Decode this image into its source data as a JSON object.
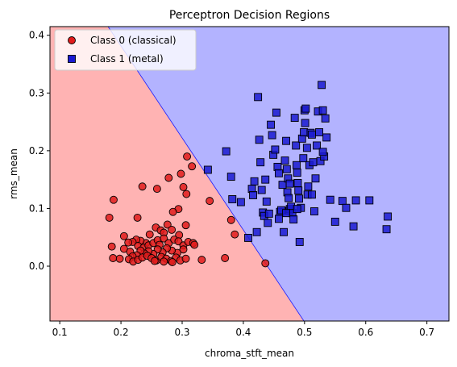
{
  "chart_data": {
    "type": "scatter",
    "title": "Perceptron Decision Regions",
    "xlabel": "chroma_stft_mean",
    "ylabel": "rms_mean",
    "xlim": [
      0.084,
      0.736
    ],
    "ylim": [
      -0.095,
      0.415
    ],
    "xticks": [
      "0.1",
      "0.2",
      "0.3",
      "0.4",
      "0.5",
      "0.6",
      "0.7"
    ],
    "xtick_values": [
      0.1,
      0.2,
      0.3,
      0.4,
      0.5,
      0.6,
      0.7
    ],
    "yticks": [
      "0.0",
      "0.1",
      "0.2",
      "0.3",
      "0.4"
    ],
    "ytick_values": [
      0.0,
      0.1,
      0.2,
      0.3,
      0.4
    ],
    "grid": false,
    "legend_position": "top-left",
    "decision_boundary": {
      "points": [
        [
          0.179,
          0.415
        ],
        [
          0.499,
          -0.095
        ]
      ],
      "class0_region_color": "#ffb3b3",
      "class1_region_color": "#b3b3ff",
      "line_color": "#1a1aff"
    },
    "series": [
      {
        "name": "Class 0 (classical)",
        "marker": "circle",
        "color": "#e11b1b",
        "points": [
          [
            0.181,
            0.084
          ],
          [
            0.188,
            0.115
          ],
          [
            0.235,
            0.138
          ],
          [
            0.259,
            0.134
          ],
          [
            0.227,
            0.084
          ],
          [
            0.308,
            0.19
          ],
          [
            0.316,
            0.173
          ],
          [
            0.298,
            0.16
          ],
          [
            0.278,
            0.153
          ],
          [
            0.302,
            0.137
          ],
          [
            0.307,
            0.125
          ],
          [
            0.345,
            0.113
          ],
          [
            0.294,
            0.099
          ],
          [
            0.285,
            0.094
          ],
          [
            0.257,
            0.067
          ],
          [
            0.265,
            0.062
          ],
          [
            0.276,
            0.072
          ],
          [
            0.283,
            0.063
          ],
          [
            0.306,
            0.071
          ],
          [
            0.295,
            0.054
          ],
          [
            0.27,
            0.058
          ],
          [
            0.247,
            0.055
          ],
          [
            0.241,
            0.04
          ],
          [
            0.232,
            0.044
          ],
          [
            0.225,
            0.046
          ],
          [
            0.219,
            0.042
          ],
          [
            0.212,
            0.041
          ],
          [
            0.205,
            0.052
          ],
          [
            0.185,
            0.034
          ],
          [
            0.205,
            0.03
          ],
          [
            0.215,
            0.025
          ],
          [
            0.228,
            0.035
          ],
          [
            0.237,
            0.032
          ],
          [
            0.245,
            0.036
          ],
          [
            0.253,
            0.04
          ],
          [
            0.26,
            0.045
          ],
          [
            0.263,
            0.037
          ],
          [
            0.27,
            0.048
          ],
          [
            0.278,
            0.04
          ],
          [
            0.287,
            0.046
          ],
          [
            0.294,
            0.043
          ],
          [
            0.302,
            0.036
          ],
          [
            0.31,
            0.042
          ],
          [
            0.318,
            0.04
          ],
          [
            0.32,
            0.037
          ],
          [
            0.302,
            0.029
          ],
          [
            0.292,
            0.023
          ],
          [
            0.283,
            0.027
          ],
          [
            0.275,
            0.031
          ],
          [
            0.268,
            0.024
          ],
          [
            0.26,
            0.029
          ],
          [
            0.253,
            0.021
          ],
          [
            0.245,
            0.026
          ],
          [
            0.238,
            0.022
          ],
          [
            0.232,
            0.027
          ],
          [
            0.226,
            0.019
          ],
          [
            0.219,
            0.017
          ],
          [
            0.213,
            0.012
          ],
          [
            0.22,
            0.008
          ],
          [
            0.228,
            0.011
          ],
          [
            0.235,
            0.015
          ],
          [
            0.243,
            0.018
          ],
          [
            0.25,
            0.014
          ],
          [
            0.258,
            0.01
          ],
          [
            0.266,
            0.016
          ],
          [
            0.274,
            0.013
          ],
          [
            0.282,
            0.009
          ],
          [
            0.29,
            0.015
          ],
          [
            0.297,
            0.01
          ],
          [
            0.306,
            0.013
          ],
          [
            0.198,
            0.013
          ],
          [
            0.187,
            0.014
          ],
          [
            0.255,
            0.009
          ],
          [
            0.27,
            0.008
          ],
          [
            0.284,
            0.007
          ],
          [
            0.332,
            0.011
          ],
          [
            0.37,
            0.014
          ],
          [
            0.38,
            0.08
          ],
          [
            0.386,
            0.055
          ],
          [
            0.436,
            0.005
          ]
        ]
      },
      {
        "name": "Class 1 (metal)",
        "marker": "square",
        "color": "#1a1ad1",
        "points": [
          [
            0.342,
            0.167
          ],
          [
            0.372,
            0.199
          ],
          [
            0.38,
            0.155
          ],
          [
            0.382,
            0.116
          ],
          [
            0.396,
            0.111
          ],
          [
            0.408,
            0.049
          ],
          [
            0.414,
            0.134
          ],
          [
            0.416,
            0.123
          ],
          [
            0.418,
            0.147
          ],
          [
            0.422,
            0.059
          ],
          [
            0.424,
            0.293
          ],
          [
            0.426,
            0.219
          ],
          [
            0.428,
            0.18
          ],
          [
            0.43,
            0.132
          ],
          [
            0.432,
            0.093
          ],
          [
            0.434,
            0.087
          ],
          [
            0.436,
            0.15
          ],
          [
            0.438,
            0.112
          ],
          [
            0.44,
            0.075
          ],
          [
            0.442,
            0.091
          ],
          [
            0.445,
            0.245
          ],
          [
            0.447,
            0.227
          ],
          [
            0.449,
            0.193
          ],
          [
            0.452,
            0.202
          ],
          [
            0.454,
            0.266
          ],
          [
            0.456,
            0.172
          ],
          [
            0.458,
            0.161
          ],
          [
            0.46,
            0.094
          ],
          [
            0.462,
            0.097
          ],
          [
            0.464,
            0.141
          ],
          [
            0.466,
            0.059
          ],
          [
            0.468,
            0.183
          ],
          [
            0.47,
            0.217
          ],
          [
            0.471,
            0.168
          ],
          [
            0.472,
            0.128
          ],
          [
            0.473,
            0.152
          ],
          [
            0.474,
            0.118
          ],
          [
            0.475,
            0.096
          ],
          [
            0.476,
            0.099
          ],
          [
            0.478,
            0.103
          ],
          [
            0.48,
            0.092
          ],
          [
            0.482,
            0.081
          ],
          [
            0.484,
            0.257
          ],
          [
            0.486,
            0.209
          ],
          [
            0.487,
            0.175
          ],
          [
            0.488,
            0.162
          ],
          [
            0.489,
            0.144
          ],
          [
            0.49,
            0.131
          ],
          [
            0.491,
            0.117
          ],
          [
            0.492,
            0.042
          ],
          [
            0.494,
            0.101
          ],
          [
            0.496,
            0.221
          ],
          [
            0.498,
            0.187
          ],
          [
            0.499,
            0.232
          ],
          [
            0.5,
            0.27
          ],
          [
            0.501,
            0.248
          ],
          [
            0.502,
            0.273
          ],
          [
            0.504,
            0.205
          ],
          [
            0.505,
            0.124
          ],
          [
            0.506,
            0.138
          ],
          [
            0.508,
            0.175
          ],
          [
            0.51,
            0.231
          ],
          [
            0.512,
            0.228
          ],
          [
            0.514,
            0.18
          ],
          [
            0.516,
            0.095
          ],
          [
            0.518,
            0.152
          ],
          [
            0.52,
            0.209
          ],
          [
            0.522,
            0.268
          ],
          [
            0.524,
            0.232
          ],
          [
            0.526,
            0.182
          ],
          [
            0.528,
            0.314
          ],
          [
            0.53,
            0.27
          ],
          [
            0.532,
            0.19
          ],
          [
            0.534,
            0.256
          ],
          [
            0.536,
            0.223
          ],
          [
            0.542,
            0.115
          ],
          [
            0.55,
            0.077
          ],
          [
            0.562,
            0.113
          ],
          [
            0.568,
            0.101
          ],
          [
            0.58,
            0.069
          ],
          [
            0.584,
            0.114
          ],
          [
            0.606,
            0.114
          ],
          [
            0.636,
            0.086
          ],
          [
            0.634,
            0.064
          ],
          [
            0.53,
            0.198
          ],
          [
            0.47,
            0.092
          ],
          [
            0.458,
            0.082
          ],
          [
            0.488,
            0.099
          ],
          [
            0.512,
            0.124
          ],
          [
            0.476,
            0.143
          ]
        ]
      }
    ]
  }
}
